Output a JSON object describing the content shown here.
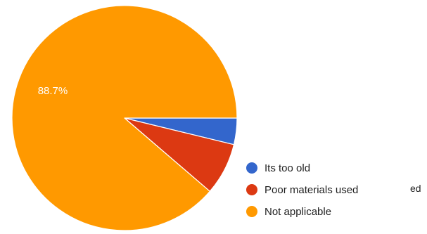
{
  "chart_data": {
    "type": "pie",
    "start_angle_deg": 0,
    "direction": "clockwise",
    "slices": [
      {
        "name": "Its too old",
        "value": 3.8,
        "color": "#3366cc"
      },
      {
        "name": "Poor materials used",
        "value": 7.5,
        "color": "#dc3912"
      },
      {
        "name": "Not applicable",
        "value": 88.7,
        "color": "#ff9900"
      }
    ],
    "data_labels": [
      {
        "series": "Not applicable",
        "text": "88.7%"
      }
    ],
    "legend_position": "right-bottom"
  },
  "stray_text": "ed"
}
